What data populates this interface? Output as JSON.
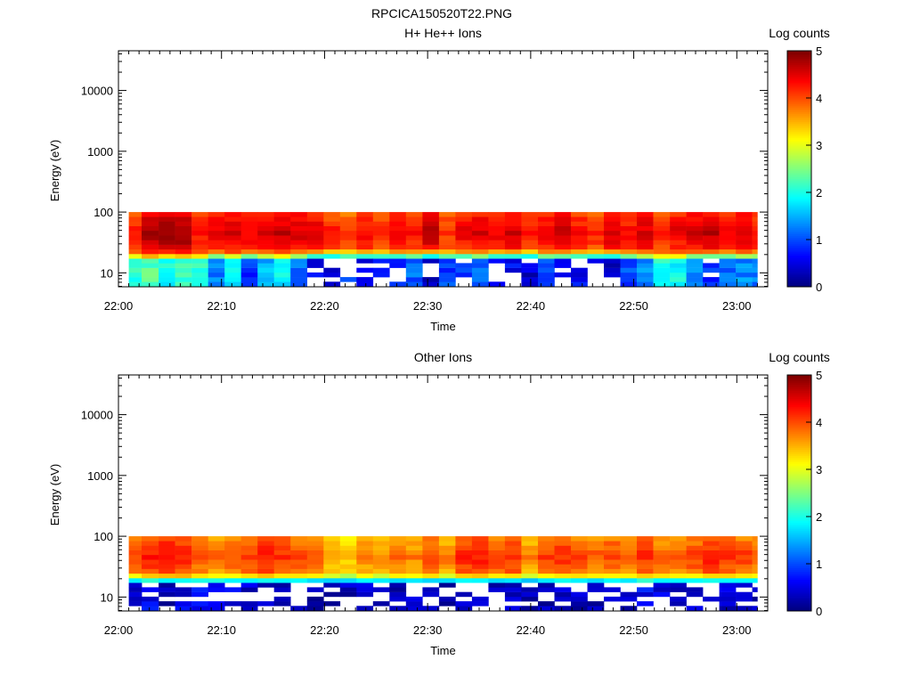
{
  "figure_title": "RPCICA150520T22.PNG",
  "chart_data": [
    {
      "type": "heatmap",
      "title": "H+ He++ Ions",
      "xlabel": "Time",
      "ylabel": "Energy (eV)",
      "xticks": [
        "22:00",
        "22:10",
        "22:20",
        "22:30",
        "22:40",
        "22:50",
        "23:00"
      ],
      "yticks": [
        "10",
        "100",
        "1000",
        "10000"
      ],
      "y_scale": "log",
      "ylim": [
        5.9,
        45000
      ],
      "x_range": [
        "22:00",
        "23:03"
      ],
      "colorbar": {
        "label": "Log counts",
        "ticks": [
          "0",
          "1",
          "2",
          "3",
          "4",
          "5"
        ],
        "range": [
          0,
          5
        ]
      },
      "data_time_range": [
        "22:01",
        "23:02"
      ],
      "data_energy_range": [
        6,
        100
      ],
      "column_minutes": [
        1.4,
        3.1,
        4.7,
        6.3,
        7.9,
        9.5,
        11.1,
        12.7,
        14.3,
        15.9,
        17.5,
        19.1,
        20.7,
        22.3,
        23.9,
        25.5,
        27.1,
        28.7,
        30.3,
        31.9,
        33.5,
        35.1,
        36.7,
        38.3,
        39.9,
        41.5,
        43.1,
        44.7,
        46.3,
        47.9,
        49.5,
        51.1,
        52.7,
        54.3,
        55.9,
        57.5,
        59.1,
        60.7,
        62.3
      ],
      "mean_high_energy_log_counts": [
        4.3,
        4.8,
        4.9,
        4.9,
        4.4,
        4.5,
        4.6,
        4.5,
        4.6,
        4.7,
        4.6,
        4.6,
        4.3,
        4.1,
        4.4,
        4.3,
        4.5,
        4.3,
        4.7,
        4.2,
        4.5,
        4.6,
        4.5,
        4.6,
        4.3,
        4.5,
        4.7,
        4.4,
        4.3,
        4.6,
        4.4,
        4.6,
        4.3,
        4.5,
        4.6,
        4.7,
        4.5,
        4.6,
        4.4
      ],
      "low_energy_log_counts_10eV": [
        2.0,
        2.3,
        1.9,
        2.2,
        2.1,
        1.2,
        1.8,
        0.9,
        1.5,
        1.8,
        1.2,
        0.5,
        0.4,
        0.8,
        0.5,
        0.6,
        0.7,
        1.1,
        0.3,
        0.9,
        0.8,
        1.2,
        0.5,
        0.6,
        0.4,
        0.9,
        0.7,
        0.6,
        0.5,
        0.4,
        1.0,
        1.3,
        2.0,
        1.9,
        1.2,
        0.8,
        1.1,
        1.3,
        1.2
      ]
    },
    {
      "type": "heatmap",
      "title": "Other Ions",
      "xlabel": "Time",
      "ylabel": "Energy (eV)",
      "xticks": [
        "22:00",
        "22:10",
        "22:20",
        "22:30",
        "22:40",
        "22:50",
        "23:00"
      ],
      "yticks": [
        "10",
        "100",
        "1000",
        "10000"
      ],
      "y_scale": "log",
      "ylim": [
        5.9,
        45000
      ],
      "x_range": [
        "22:00",
        "23:03"
      ],
      "colorbar": {
        "label": "Log counts",
        "ticks": [
          "0",
          "1",
          "2",
          "3",
          "4",
          "5"
        ],
        "range": [
          0,
          5
        ]
      },
      "data_time_range": [
        "22:01",
        "23:02"
      ],
      "data_energy_range": [
        6,
        100
      ],
      "column_minutes": [
        1.4,
        3.1,
        4.7,
        6.3,
        7.9,
        9.5,
        11.1,
        12.7,
        14.3,
        15.9,
        17.5,
        19.1,
        20.7,
        22.3,
        23.9,
        25.5,
        27.1,
        28.7,
        30.3,
        31.9,
        33.5,
        35.1,
        36.7,
        38.3,
        39.9,
        41.5,
        43.1,
        44.7,
        46.3,
        47.9,
        49.5,
        51.1,
        52.7,
        54.3,
        55.9,
        57.5,
        59.1,
        60.7,
        62.3
      ],
      "mean_high_energy_log_counts": [
        4.0,
        4.3,
        4.4,
        4.3,
        4.0,
        3.9,
        4.0,
        4.1,
        4.3,
        4.2,
        4.1,
        3.9,
        3.6,
        3.5,
        3.8,
        3.7,
        3.9,
        3.8,
        4.1,
        3.8,
        4.2,
        4.3,
        4.1,
        4.2,
        3.8,
        4.1,
        4.2,
        4.1,
        4.0,
        4.1,
        4.0,
        4.2,
        3.9,
        4.0,
        4.1,
        4.3,
        4.2,
        4.1,
        4.0
      ],
      "low_energy_log_counts_10eV": [
        0.4,
        0.6,
        0.3,
        0.5,
        0.7,
        0.8,
        0.5,
        0.4,
        0.3,
        0.2,
        0.4,
        0.3,
        0.2,
        0.3,
        0.5,
        0.4,
        0.3,
        0.4,
        0.2,
        0.3,
        0.4,
        0.3,
        0.2,
        0.3,
        0.2,
        0.3,
        0.4,
        0.3,
        0.2,
        0.3,
        0.3,
        0.6,
        0.5,
        0.4,
        0.3,
        0.3,
        0.4,
        0.3,
        0.3
      ]
    }
  ]
}
